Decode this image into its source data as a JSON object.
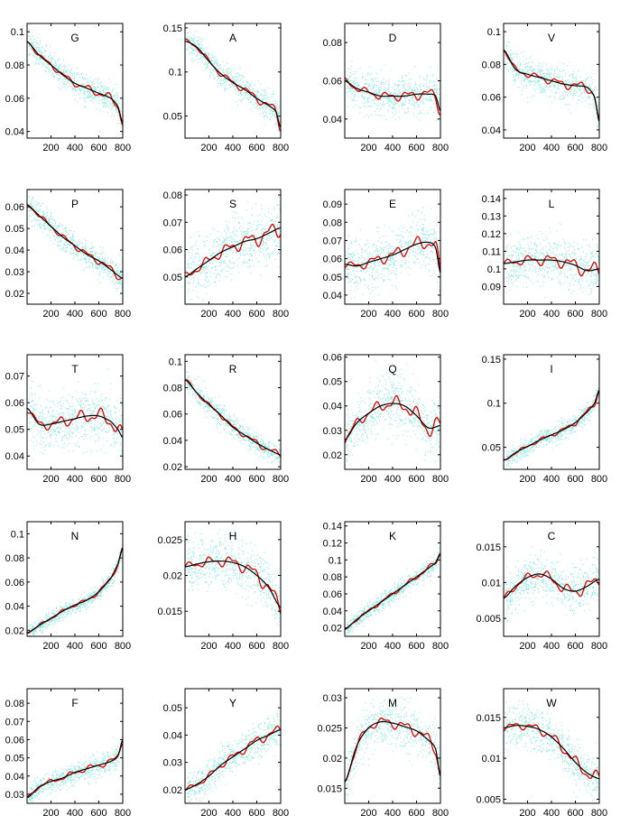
{
  "chart_data": {
    "type": "line",
    "layout": "grid of 5 rows x 4 columns",
    "x_ticks": [
      200,
      400,
      600,
      800
    ],
    "xlim": [
      0,
      800
    ],
    "series_style": {
      "scatter_color": "#7fe8dc",
      "smooth_fit_color": "#000000",
      "wiggly_fit_color": "#e00000"
    },
    "panels": [
      {
        "title": "G",
        "ylim": [
          0.036,
          0.105
        ],
        "yticks": [
          0.04,
          0.06,
          0.08,
          0.1
        ],
        "ytick_labels": [
          "0.04",
          "0.06",
          "0.08",
          "0.1"
        ],
        "x": [
          0,
          100,
          200,
          300,
          400,
          500,
          600,
          700,
          760,
          800
        ],
        "smooth": [
          0.094,
          0.086,
          0.08,
          0.074,
          0.069,
          0.066,
          0.063,
          0.06,
          0.055,
          0.045
        ],
        "noise": 0.004
      },
      {
        "title": "A",
        "ylim": [
          0.025,
          0.155
        ],
        "yticks": [
          0.05,
          0.1,
          0.15
        ],
        "ytick_labels": [
          "0.05",
          "0.1",
          "0.15"
        ],
        "x": [
          0,
          100,
          200,
          300,
          400,
          500,
          600,
          700,
          760,
          800
        ],
        "smooth": [
          0.135,
          0.128,
          0.112,
          0.098,
          0.088,
          0.08,
          0.07,
          0.062,
          0.055,
          0.037
        ],
        "noise": 0.008
      },
      {
        "title": "D",
        "ylim": [
          0.03,
          0.09
        ],
        "yticks": [
          0.04,
          0.06,
          0.08
        ],
        "ytick_labels": [
          "0.04",
          "0.06",
          "0.08"
        ],
        "x": [
          0,
          100,
          200,
          300,
          400,
          500,
          600,
          700,
          760,
          800
        ],
        "smooth": [
          0.06,
          0.056,
          0.054,
          0.052,
          0.052,
          0.052,
          0.053,
          0.053,
          0.052,
          0.044
        ],
        "noise": 0.005
      },
      {
        "title": "V",
        "ylim": [
          0.035,
          0.105
        ],
        "yticks": [
          0.04,
          0.06,
          0.08,
          0.1
        ],
        "ytick_labels": [
          "0.04",
          "0.06",
          "0.08",
          "0.1"
        ],
        "x": [
          0,
          100,
          200,
          300,
          400,
          500,
          600,
          700,
          760,
          800
        ],
        "smooth": [
          0.089,
          0.077,
          0.074,
          0.072,
          0.07,
          0.068,
          0.067,
          0.066,
          0.06,
          0.045
        ],
        "noise": 0.005
      },
      {
        "title": "P",
        "ylim": [
          0.015,
          0.068
        ],
        "yticks": [
          0.02,
          0.03,
          0.04,
          0.05,
          0.06
        ],
        "ytick_labels": [
          "0.02",
          "0.03",
          "0.04",
          "0.05",
          "0.06"
        ],
        "x": [
          0,
          100,
          200,
          300,
          400,
          500,
          600,
          700,
          800
        ],
        "smooth": [
          0.061,
          0.056,
          0.051,
          0.046,
          0.042,
          0.038,
          0.035,
          0.031,
          0.027
        ],
        "noise": 0.003
      },
      {
        "title": "S",
        "ylim": [
          0.04,
          0.082
        ],
        "yticks": [
          0.05,
          0.06,
          0.07,
          0.08
        ],
        "ytick_labels": [
          "0.05",
          "0.06",
          "0.07",
          "0.08"
        ],
        "x": [
          0,
          100,
          200,
          300,
          400,
          500,
          600,
          700,
          800
        ],
        "smooth": [
          0.05,
          0.053,
          0.056,
          0.059,
          0.061,
          0.063,
          0.064,
          0.066,
          0.068
        ],
        "noise": 0.005
      },
      {
        "title": "E",
        "ylim": [
          0.035,
          0.098
        ],
        "yticks": [
          0.04,
          0.05,
          0.06,
          0.07,
          0.08,
          0.09
        ],
        "ytick_labels": [
          "0.04",
          "0.05",
          "0.06",
          "0.07",
          "0.08",
          "0.09"
        ],
        "x": [
          0,
          100,
          200,
          300,
          400,
          500,
          600,
          700,
          760,
          800
        ],
        "smooth": [
          0.057,
          0.056,
          0.058,
          0.06,
          0.062,
          0.065,
          0.068,
          0.069,
          0.066,
          0.052
        ],
        "noise": 0.007
      },
      {
        "title": "L",
        "ylim": [
          0.08,
          0.145
        ],
        "yticks": [
          0.09,
          0.1,
          0.11,
          0.12,
          0.13,
          0.14
        ],
        "ytick_labels": [
          "0.09",
          "0.1",
          "0.11",
          "0.12",
          "0.13",
          "0.14"
        ],
        "x": [
          0,
          100,
          200,
          300,
          400,
          500,
          600,
          700,
          800
        ],
        "smooth": [
          0.103,
          0.104,
          0.105,
          0.105,
          0.105,
          0.104,
          0.102,
          0.099,
          0.1
        ],
        "noise": 0.007
      },
      {
        "title": "T",
        "ylim": [
          0.035,
          0.078
        ],
        "yticks": [
          0.04,
          0.05,
          0.06,
          0.07
        ],
        "ytick_labels": [
          "0.04",
          "0.05",
          "0.06",
          "0.07"
        ],
        "x": [
          0,
          100,
          200,
          300,
          400,
          500,
          600,
          700,
          760,
          800
        ],
        "smooth": [
          0.058,
          0.052,
          0.052,
          0.053,
          0.054,
          0.055,
          0.055,
          0.053,
          0.05,
          0.047
        ],
        "noise": 0.005
      },
      {
        "title": "R",
        "ylim": [
          0.018,
          0.105
        ],
        "yticks": [
          0.02,
          0.04,
          0.06,
          0.08,
          0.1
        ],
        "ytick_labels": [
          "0.02",
          "0.04",
          "0.06",
          "0.08",
          "0.1"
        ],
        "x": [
          0,
          100,
          200,
          300,
          400,
          500,
          600,
          700,
          800
        ],
        "smooth": [
          0.086,
          0.076,
          0.067,
          0.059,
          0.05,
          0.044,
          0.038,
          0.033,
          0.029
        ],
        "noise": 0.004
      },
      {
        "title": "Q",
        "ylim": [
          0.014,
          0.061
        ],
        "yticks": [
          0.02,
          0.03,
          0.04,
          0.05,
          0.06
        ],
        "ytick_labels": [
          "0.02",
          "0.03",
          "0.04",
          "0.05",
          "0.06"
        ],
        "x": [
          0,
          100,
          200,
          300,
          400,
          500,
          600,
          700,
          800
        ],
        "smooth": [
          0.026,
          0.033,
          0.037,
          0.04,
          0.041,
          0.04,
          0.036,
          0.031,
          0.032
        ],
        "noise": 0.006
      },
      {
        "title": "I",
        "ylim": [
          0.025,
          0.155
        ],
        "yticks": [
          0.05,
          0.1,
          0.15
        ],
        "ytick_labels": [
          "0.05",
          "0.1",
          "0.15"
        ],
        "x": [
          0,
          100,
          200,
          300,
          400,
          500,
          600,
          700,
          760,
          800
        ],
        "smooth": [
          0.035,
          0.044,
          0.051,
          0.058,
          0.064,
          0.07,
          0.078,
          0.09,
          0.1,
          0.115
        ],
        "noise": 0.005
      },
      {
        "title": "N",
        "ylim": [
          0.015,
          0.11
        ],
        "yticks": [
          0.02,
          0.04,
          0.06,
          0.08,
          0.1
        ],
        "ytick_labels": [
          "0.02",
          "0.04",
          "0.06",
          "0.08",
          "0.1"
        ],
        "x": [
          0,
          100,
          200,
          300,
          400,
          500,
          600,
          700,
          760,
          800
        ],
        "smooth": [
          0.018,
          0.024,
          0.03,
          0.036,
          0.041,
          0.045,
          0.052,
          0.063,
          0.075,
          0.088
        ],
        "noise": 0.003
      },
      {
        "title": "H",
        "ylim": [
          0.0115,
          0.0275
        ],
        "yticks": [
          0.015,
          0.02,
          0.025
        ],
        "ytick_labels": [
          "0.015",
          "0.02",
          "0.025"
        ],
        "x": [
          0,
          100,
          200,
          300,
          400,
          500,
          600,
          700,
          800
        ],
        "smooth": [
          0.0212,
          0.0216,
          0.0219,
          0.022,
          0.0218,
          0.0212,
          0.02,
          0.0183,
          0.0155
        ],
        "noise": 0.0018
      },
      {
        "title": "K",
        "ylim": [
          0.01,
          0.145
        ],
        "yticks": [
          0.02,
          0.04,
          0.06,
          0.08,
          0.1,
          0.12,
          0.14
        ],
        "ytick_labels": [
          "0.02",
          "0.04",
          "0.06",
          "0.08",
          "0.1",
          "0.12",
          "0.14"
        ],
        "x": [
          0,
          100,
          200,
          300,
          400,
          500,
          600,
          700,
          760,
          800
        ],
        "smooth": [
          0.018,
          0.03,
          0.04,
          0.05,
          0.06,
          0.07,
          0.08,
          0.09,
          0.097,
          0.108
        ],
        "noise": 0.005
      },
      {
        "title": "C",
        "ylim": [
          0.0025,
          0.0185
        ],
        "yticks": [
          0.005,
          0.01,
          0.015
        ],
        "ytick_labels": [
          "0.005",
          "0.01",
          "0.015"
        ],
        "x": [
          0,
          100,
          200,
          300,
          400,
          500,
          600,
          700,
          800
        ],
        "smooth": [
          0.0078,
          0.0095,
          0.0107,
          0.0112,
          0.0105,
          0.0092,
          0.0088,
          0.0095,
          0.0105
        ],
        "noise": 0.0015
      },
      {
        "title": "F",
        "ylim": [
          0.025,
          0.088
        ],
        "yticks": [
          0.03,
          0.04,
          0.05,
          0.06,
          0.07,
          0.08
        ],
        "ytick_labels": [
          "0.03",
          "0.04",
          "0.05",
          "0.06",
          "0.07",
          "0.08"
        ],
        "x": [
          0,
          100,
          200,
          300,
          400,
          500,
          600,
          700,
          760,
          800
        ],
        "smooth": [
          0.028,
          0.034,
          0.037,
          0.039,
          0.042,
          0.044,
          0.046,
          0.048,
          0.051,
          0.06
        ],
        "noise": 0.003
      },
      {
        "title": "Y",
        "ylim": [
          0.015,
          0.057
        ],
        "yticks": [
          0.02,
          0.03,
          0.04,
          0.05
        ],
        "ytick_labels": [
          "0.02",
          "0.03",
          "0.04",
          "0.05"
        ],
        "x": [
          0,
          100,
          200,
          300,
          400,
          500,
          600,
          700,
          800
        ],
        "smooth": [
          0.02,
          0.022,
          0.025,
          0.029,
          0.032,
          0.035,
          0.038,
          0.04,
          0.042
        ],
        "noise": 0.003
      },
      {
        "title": "M",
        "ylim": [
          0.0125,
          0.0315
        ],
        "yticks": [
          0.015,
          0.02,
          0.025,
          0.03
        ],
        "ytick_labels": [
          "0.015",
          "0.02",
          "0.025",
          "0.03"
        ],
        "x": [
          0,
          100,
          200,
          300,
          400,
          500,
          600,
          700,
          760,
          800
        ],
        "smooth": [
          0.016,
          0.022,
          0.025,
          0.026,
          0.0258,
          0.0252,
          0.0245,
          0.023,
          0.0215,
          0.017
        ],
        "noise": 0.0018
      },
      {
        "title": "W",
        "ylim": [
          0.0045,
          0.0185
        ],
        "yticks": [
          0.005,
          0.01,
          0.015
        ],
        "ytick_labels": [
          "0.005",
          "0.01",
          "0.015"
        ],
        "x": [
          0,
          100,
          200,
          300,
          400,
          500,
          600,
          700,
          800
        ],
        "smooth": [
          0.0137,
          0.014,
          0.0139,
          0.0135,
          0.0126,
          0.0112,
          0.0095,
          0.0082,
          0.0075
        ],
        "noise": 0.0013
      }
    ]
  }
}
